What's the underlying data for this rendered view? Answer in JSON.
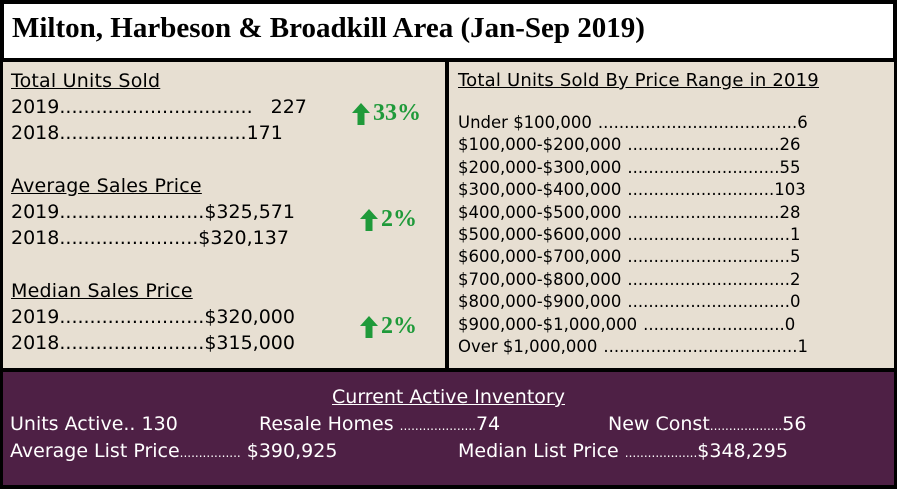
{
  "title": "Milton, Harbeson & Broadkill Area (Jan-Sep 2019)",
  "left": {
    "units_sold": {
      "heading": "Total Units Sold",
      "rows": [
        {
          "label": "2019",
          "dots": "................................",
          "value": "227"
        },
        {
          "label": "2018",
          "dots": "...............................",
          "value": "171"
        }
      ],
      "change": "33%"
    },
    "avg_price": {
      "heading": "Average Sales Price",
      "rows": [
        {
          "label": "2019",
          "dots": "........................",
          "value": "$325,571"
        },
        {
          "label": "2018",
          "dots": ".......................",
          "value": "$320,137"
        }
      ],
      "change": "2%"
    },
    "median_price": {
      "heading": "Median Sales Price",
      "rows": [
        {
          "label": "2019",
          "dots": "........................",
          "value": "$320,000"
        },
        {
          "label": "2018",
          "dots": "........................",
          "value": "$315,000"
        }
      ],
      "change": "2%"
    },
    "arrow_color": "#1f9a3a"
  },
  "right": {
    "heading": "Total Units Sold By Price Range in 2019",
    "ranges": [
      {
        "label": "Under $100,000",
        "dots": "......................................",
        "value": "6"
      },
      {
        "label": "$100,000-$200,000",
        "dots": ".............................",
        "value": "26"
      },
      {
        "label": "$200,000-$300,000",
        "dots": ".............................",
        "value": "55"
      },
      {
        "label": "$300,000-$400,000",
        "dots": "............................",
        "value": "103"
      },
      {
        "label": "$400,000-$500,000",
        "dots": ".............................",
        "value": "28"
      },
      {
        "label": "$500,000-$600,000",
        "dots": "...............................",
        "value": "1"
      },
      {
        "label": "$600,000-$700,000",
        "dots": "...............................",
        "value": "5"
      },
      {
        "label": "$700,000-$800,000",
        "dots": "...............................",
        "value": "2"
      },
      {
        "label": "$800,000-$900,000",
        "dots": "...............................",
        "value": "0"
      },
      {
        "label": "$900,000-$1,000,000",
        "dots": "...........................",
        "value": "0"
      },
      {
        "label": "Over $1,000,000",
        "dots": ".....................................",
        "value": "1"
      }
    ]
  },
  "inventory": {
    "heading": "Current Active Inventory",
    "units_active_label": "Units Active",
    "units_active_dots": "..",
    "units_active_value": "130",
    "resale_label": "Resale Homes",
    "resale_dots": "....................",
    "resale_value": "74",
    "new_const_label": "New Const",
    "new_const_dots": "...................",
    "new_const_value": "56",
    "avg_list_label": "Average List Price",
    "avg_list_dots": "................",
    "avg_list_value": "$390,925",
    "median_list_label": "Median List Price",
    "median_list_dots": "...................",
    "median_list_value": "$348,295"
  },
  "colors": {
    "panel_bg": "#e7dfd2",
    "inventory_bg": "#4e2045",
    "border": "#000000"
  }
}
